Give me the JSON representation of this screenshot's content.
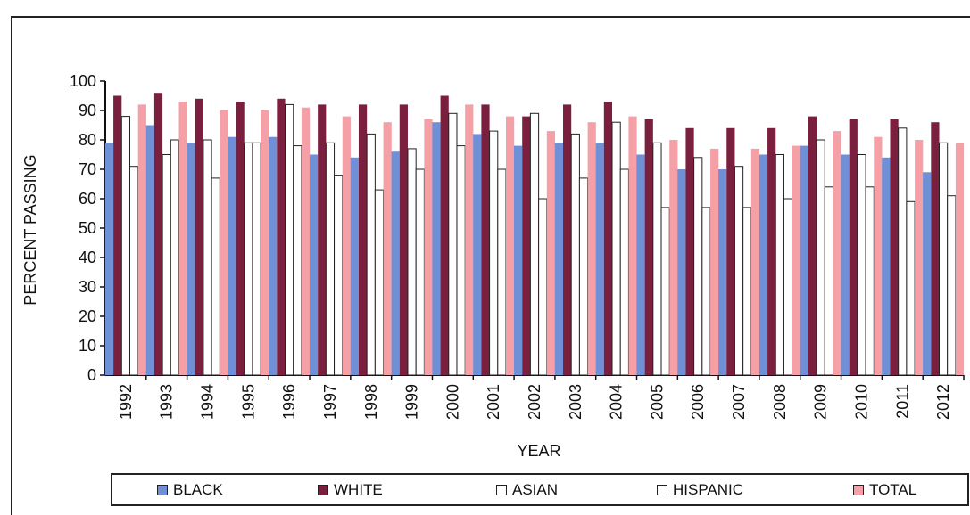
{
  "chart_data": {
    "type": "bar",
    "xlabel": "YEAR",
    "ylabel": "PERCENT PASSING",
    "ylim": [
      0,
      100
    ],
    "yticks": [
      0,
      10,
      20,
      30,
      40,
      50,
      60,
      70,
      80,
      90,
      100
    ],
    "grid": false,
    "legend_position": "bottom",
    "categories": [
      "1992",
      "1993",
      "1994",
      "1995",
      "1996",
      "1997",
      "1998",
      "1999",
      "2000",
      "2001",
      "2002",
      "2003",
      "2004",
      "2005",
      "2006",
      "2007",
      "2008",
      "2009",
      "2010",
      "2011",
      "2012"
    ],
    "series": [
      {
        "name": "BLACK",
        "color": "#6f8fd6",
        "values": [
          79,
          85,
          79,
          81,
          81,
          75,
          74,
          76,
          86,
          82,
          78,
          79,
          79,
          75,
          70,
          70,
          75,
          78,
          75,
          74,
          69
        ]
      },
      {
        "name": "WHITE",
        "color": "#7a1f3d",
        "values": [
          95,
          96,
          94,
          93,
          94,
          92,
          92,
          92,
          95,
          92,
          88,
          92,
          93,
          87,
          84,
          84,
          84,
          88,
          87,
          87,
          86
        ]
      },
      {
        "name": "ASIAN",
        "color": "#ffffff",
        "values": [
          88,
          75,
          80,
          79,
          92,
          79,
          82,
          77,
          89,
          83,
          89,
          82,
          86,
          79,
          74,
          71,
          75,
          80,
          75,
          84,
          79
        ]
      },
      {
        "name": "HISPANIC",
        "color": "#ffffff",
        "values": [
          71,
          80,
          67,
          79,
          78,
          68,
          63,
          70,
          78,
          70,
          60,
          67,
          70,
          57,
          57,
          57,
          60,
          64,
          64,
          59,
          61
        ]
      },
      {
        "name": "TOTAL",
        "color": "#f4a0a6",
        "values": [
          92,
          93,
          90,
          90,
          91,
          88,
          86,
          87,
          92,
          88,
          83,
          86,
          88,
          80,
          77,
          77,
          78,
          83,
          81,
          80,
          79
        ]
      }
    ]
  }
}
